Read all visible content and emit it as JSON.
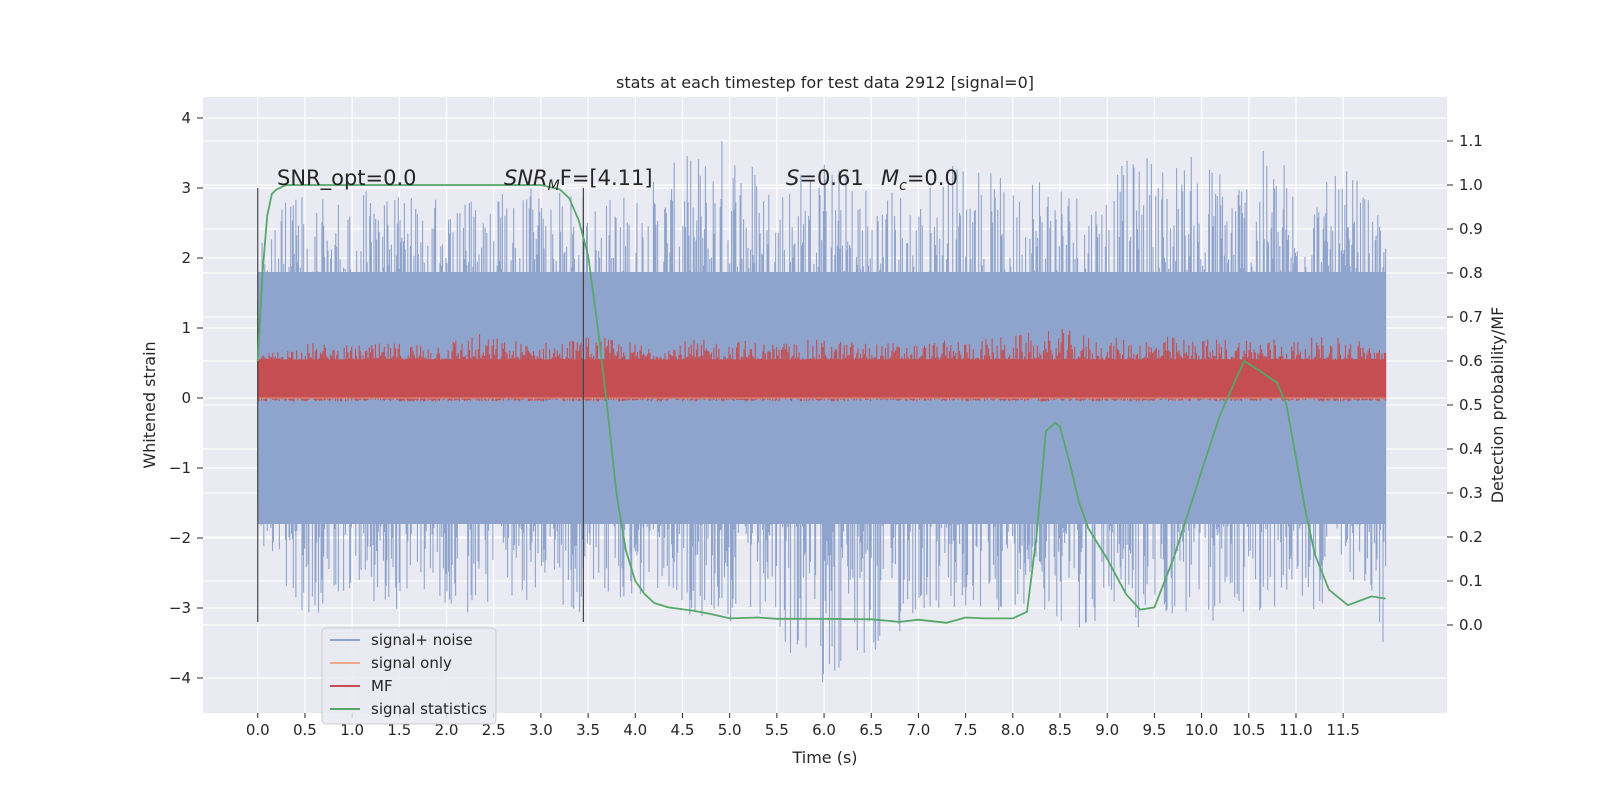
{
  "chart_data": {
    "type": "line",
    "title": "stats at each timestep for test data 2912 [signal=0]",
    "xlabel": "Time (s)",
    "ylabel_left": "Whitened strain",
    "ylabel_right": "Detection probability/MF",
    "xlim": [
      -0.58,
      12.6
    ],
    "ylim_left": [
      -4.5,
      4.3
    ],
    "ylim_right": [
      -0.2,
      1.2
    ],
    "x_ticks": [
      "0.0",
      "0.5",
      "1.0",
      "1.5",
      "2.0",
      "2.5",
      "3.0",
      "3.5",
      "4.0",
      "4.5",
      "5.0",
      "5.5",
      "6.0",
      "6.5",
      "7.0",
      "7.5",
      "8.0",
      "8.5",
      "9.0",
      "9.5",
      "10.0",
      "10.5",
      "11.0",
      "11.5"
    ],
    "y_ticks_left": [
      "4",
      "3",
      "2",
      "1",
      "0",
      "−1",
      "−2",
      "−3",
      "−4"
    ],
    "y_ticks_right": [
      "1.1",
      "1.0",
      "0.9",
      "0.8",
      "0.7",
      "0.6",
      "0.5",
      "0.4",
      "0.3",
      "0.2",
      "0.1",
      "0.0"
    ],
    "grid": true,
    "legend_position": "bottom-left",
    "annotations": {
      "snr_opt": "SNR_opt=0.0",
      "snr_mf_label": "SNR",
      "snr_mf_sub": "M",
      "snr_mf_rest": "F=[4.11]",
      "s_label": "S",
      "s_value": "=0.61",
      "mc_label": "M",
      "mc_sub": "c",
      "mc_value": "=0.0"
    },
    "vertical_lines_x": [
      0.0,
      3.45
    ],
    "series": [
      {
        "name": "signal+ noise",
        "axis": "left",
        "color": "#8fa4cc",
        "x_range": [
          0.0,
          11.95
        ],
        "envelope_typical": [
          -1.8,
          1.8
        ],
        "x": [
          0.0,
          0.3,
          0.6,
          1.0,
          1.3,
          1.5,
          1.7,
          2.0,
          2.3,
          2.6,
          3.0,
          3.5,
          4.0,
          5.0,
          5.5,
          6.0,
          6.5,
          7.0,
          7.5,
          8.0,
          8.2,
          8.5,
          8.8,
          9.0,
          9.4,
          9.5,
          10.0,
          10.3,
          10.8,
          11.0,
          11.3,
          11.6,
          11.95
        ],
        "y_max": [
          2.2,
          2.8,
          3.0,
          2.9,
          3.1,
          3.2,
          2.9,
          3.0,
          2.8,
          3.1,
          3.0,
          2.9,
          3.0,
          3.9,
          3.2,
          3.5,
          3.1,
          3.0,
          3.6,
          3.0,
          3.5,
          3.3,
          3.0,
          3.2,
          3.6,
          3.5,
          3.5,
          3.4,
          3.6,
          3.3,
          3.1,
          3.3,
          2.4
        ],
        "y_min": [
          -2.0,
          -2.9,
          -3.2,
          -2.8,
          -3.0,
          -3.2,
          -2.7,
          -3.0,
          -3.2,
          -2.9,
          -3.0,
          -3.1,
          -2.9,
          -3.3,
          -3.6,
          -4.1,
          -4.0,
          -3.1,
          -3.3,
          -3.0,
          -2.9,
          -3.2,
          -3.4,
          -3.0,
          -3.5,
          -3.1,
          -3.3,
          -3.2,
          -3.0,
          -3.2,
          -3.0,
          -2.6,
          -3.8
        ]
      },
      {
        "name": "signal only",
        "axis": "left",
        "color": "#f0a98a",
        "x": [
          0.0,
          11.95
        ],
        "y": [
          0.0,
          0.0
        ]
      },
      {
        "name": "MF",
        "axis": "left",
        "color": "#c44e52",
        "x_range": [
          0.0,
          11.95
        ],
        "baseline_range": [
          0.0,
          0.55
        ],
        "x": [
          0.0,
          0.5,
          1.0,
          1.5,
          2.0,
          2.3,
          2.6,
          3.0,
          3.5,
          4.0,
          5.0,
          5.5,
          6.0,
          6.5,
          7.0,
          7.5,
          8.0,
          8.5,
          9.0,
          9.5,
          10.0,
          10.5,
          11.0,
          11.5,
          11.95
        ],
        "y_max": [
          0.6,
          0.8,
          0.75,
          0.8,
          0.85,
          0.95,
          0.85,
          0.8,
          0.9,
          0.8,
          0.85,
          0.8,
          0.85,
          0.8,
          0.8,
          0.85,
          0.9,
          1.0,
          0.85,
          0.9,
          0.85,
          0.9,
          0.85,
          0.9,
          0.75
        ]
      },
      {
        "name": "signal statistics",
        "axis": "right",
        "color": "#55a868",
        "x": [
          0.0,
          0.05,
          0.1,
          0.15,
          0.2,
          0.3,
          0.5,
          1.0,
          2.0,
          2.5,
          2.8,
          3.0,
          3.2,
          3.3,
          3.4,
          3.5,
          3.6,
          3.7,
          3.8,
          3.9,
          4.0,
          4.1,
          4.2,
          4.35,
          4.6,
          4.8,
          5.0,
          5.3,
          5.5,
          6.0,
          6.5,
          6.8,
          7.0,
          7.3,
          7.5,
          7.7,
          8.0,
          8.15,
          8.25,
          8.35,
          8.45,
          8.5,
          8.6,
          8.7,
          8.8,
          9.0,
          9.2,
          9.35,
          9.5,
          9.7,
          10.0,
          10.2,
          10.45,
          10.6,
          10.8,
          10.9,
          11.0,
          11.1,
          11.2,
          11.35,
          11.55,
          11.8,
          11.95
        ],
        "y": [
          0.6,
          0.8,
          0.93,
          0.98,
          0.99,
          1.0,
          1.0,
          1.0,
          1.0,
          1.0,
          1.0,
          1.0,
          0.99,
          0.97,
          0.92,
          0.84,
          0.68,
          0.5,
          0.3,
          0.17,
          0.1,
          0.07,
          0.05,
          0.04,
          0.033,
          0.025,
          0.015,
          0.017,
          0.014,
          0.014,
          0.013,
          0.007,
          0.012,
          0.005,
          0.017,
          0.015,
          0.015,
          0.03,
          0.2,
          0.44,
          0.46,
          0.45,
          0.37,
          0.28,
          0.22,
          0.15,
          0.07,
          0.035,
          0.04,
          0.15,
          0.35,
          0.48,
          0.6,
          0.58,
          0.55,
          0.5,
          0.38,
          0.26,
          0.16,
          0.08,
          0.045,
          0.065,
          0.06
        ]
      }
    ]
  }
}
